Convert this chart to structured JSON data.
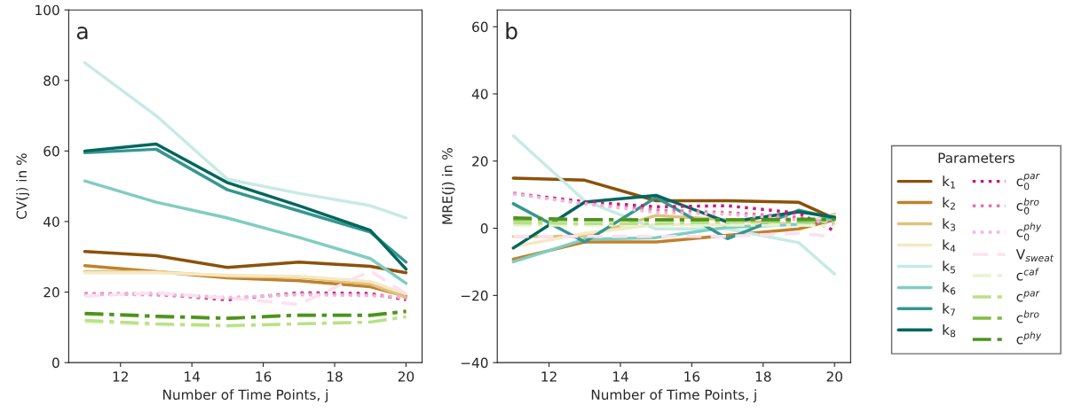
{
  "chart_data": [
    {
      "type": "line",
      "ylabel": "CV(j) in %",
      "xlabel": "Number of Time Points, j",
      "annotations": [
        "a"
      ],
      "x": [
        11,
        13,
        15,
        17,
        19,
        20
      ],
      "xlim": [
        10.55,
        20.45
      ],
      "xticks": [
        12,
        14,
        16,
        18,
        20
      ],
      "ylim": [
        0,
        100
      ],
      "yticks": [
        0,
        20,
        40,
        60,
        80,
        100
      ],
      "grid": false,
      "legend": false,
      "series": [
        {
          "color": "#8c510a",
          "line_style": "solid",
          "values": [
            31.5,
            30.3,
            27,
            28.5,
            27.3,
            25.5
          ]
        },
        {
          "color": "#bf812d",
          "line_style": "solid",
          "values": [
            27.5,
            25.8,
            24,
            23.2,
            21.5,
            18.8
          ]
        },
        {
          "color": "#dfc27d",
          "line_style": "solid",
          "values": [
            25.8,
            25.8,
            24.5,
            24.2,
            22.3,
            18.5
          ]
        },
        {
          "color": "#f6e8c3",
          "line_style": "solid",
          "values": [
            25.5,
            25.5,
            24.8,
            24.5,
            23,
            19.5
          ]
        },
        {
          "color": "#c7eae5",
          "line_style": "solid",
          "values": [
            85,
            70,
            52,
            48,
            44.5,
            41
          ]
        },
        {
          "color": "#80cdc1",
          "line_style": "solid",
          "values": [
            51.5,
            45.5,
            41,
            35.5,
            29.5,
            22.5
          ]
        },
        {
          "color": "#35978f",
          "line_style": "solid",
          "values": [
            59.5,
            60.5,
            49,
            43,
            37,
            28.5
          ]
        },
        {
          "color": "#01665e",
          "line_style": "solid",
          "values": [
            60,
            62,
            51,
            44.5,
            37.5,
            26.5
          ]
        },
        {
          "color": "#c51b7d",
          "line_style": "dotted",
          "values": [
            19.5,
            19.5,
            17.8,
            19.8,
            19.6,
            17.8
          ]
        },
        {
          "color": "#de77ae",
          "line_style": "dotted",
          "values": [
            19.5,
            19.2,
            18.2,
            19.5,
            19.2,
            18.2
          ]
        },
        {
          "color": "#f1b6da",
          "line_style": "dotted",
          "values": [
            19.2,
            19.5,
            18.5,
            19.2,
            19,
            18.5
          ]
        },
        {
          "color": "#fde0ef",
          "line_style": "dashed",
          "values": [
            18.8,
            19.8,
            18.3,
            16.5,
            26,
            19.5
          ]
        },
        {
          "color": "#e6f5d0",
          "line_style": "dashdot",
          "values": [
            11.5,
            10.7,
            10.3,
            11,
            11.5,
            13
          ]
        },
        {
          "color": "#b8e186",
          "line_style": "dashdot",
          "values": [
            12,
            11,
            10.5,
            11,
            11.5,
            13
          ]
        },
        {
          "color": "#7fbc41",
          "line_style": "dashdot",
          "values": [
            13.8,
            13,
            12.5,
            13.4,
            13.3,
            14.4
          ]
        },
        {
          "color": "#4d9221",
          "line_style": "dashdot",
          "values": [
            14,
            13.2,
            12.6,
            13.5,
            13.5,
            14.6
          ]
        }
      ]
    },
    {
      "type": "line",
      "ylabel": "MRE(j) in %",
      "xlabel": "Number of Time Points, j",
      "annotations": [
        "b"
      ],
      "x": [
        11,
        13,
        15,
        17,
        19,
        20
      ],
      "xlim": [
        10.55,
        20.45
      ],
      "xticks": [
        12,
        14,
        16,
        18,
        20
      ],
      "ylim": [
        -40,
        65
      ],
      "yticks": [
        -40,
        -20,
        0,
        20,
        40,
        60
      ],
      "grid": false,
      "legend": "right",
      "legend_title": "Parameters",
      "series": [
        {
          "name": "k$_{1}$",
          "color": "#8c510a",
          "line_style": "solid",
          "values": [
            14.9,
            14.3,
            8.2,
            8.2,
            7.7,
            2.9
          ]
        },
        {
          "name": "k$_{2}$",
          "color": "#bf812d",
          "line_style": "solid",
          "values": [
            -9.2,
            -4.1,
            -4.1,
            -2.1,
            -0.2,
            2.5
          ]
        },
        {
          "name": "k$_{3}$",
          "color": "#dfc27d",
          "line_style": "solid",
          "values": [
            -2.4,
            -2.4,
            3.8,
            2.5,
            1.1,
            4.2
          ]
        },
        {
          "name": "k$_{4}$",
          "color": "#f6e8c3",
          "line_style": "solid",
          "values": [
            -5.5,
            -1.5,
            1.1,
            1.1,
            1.1,
            3.8
          ]
        },
        {
          "name": "k$_{5}$",
          "color": "#c7eae5",
          "line_style": "solid",
          "values": [
            27.5,
            8.2,
            -0.2,
            -0.2,
            -4.3,
            -13.6
          ]
        },
        {
          "name": "k$_{6}$",
          "color": "#80cdc1",
          "line_style": "solid",
          "values": [
            -10,
            -3.3,
            -2.8,
            0.3,
            1.1,
            2.9
          ]
        },
        {
          "name": "k$_{7}$",
          "color": "#35978f",
          "line_style": "solid",
          "values": [
            7.3,
            -4.1,
            9.2,
            -3.1,
            5.4,
            2.9
          ]
        },
        {
          "name": "k$_{8}$",
          "color": "#01665e",
          "line_style": "solid",
          "values": [
            -5.9,
            7.8,
            9.8,
            1.8,
            4.9,
            3.3
          ]
        },
        {
          "name": "c$^{par}$$_{0}$",
          "color": "#c51b7d",
          "line_style": "dotted",
          "values": [
            10.4,
            7.9,
            6.4,
            6.7,
            4.5,
            -0.8
          ]
        },
        {
          "name": "c$^{bro}$$_{0}$",
          "color": "#de77ae",
          "line_style": "dotted",
          "values": [
            10.4,
            7.3,
            5.4,
            4.7,
            3.3,
            1.1
          ]
        },
        {
          "name": "c$^{phy}$$_{0}$",
          "color": "#f1b6da",
          "line_style": "dotted",
          "values": [
            10.2,
            7.3,
            4.7,
            4.2,
            2.5,
            1.6
          ]
        },
        {
          "name": "V$_{sweat}$",
          "color": "#fde0ef",
          "line_style": "dashed",
          "values": [
            -2.4,
            -2.4,
            -2.4,
            -2.4,
            -1.5,
            -2.6
          ]
        },
        {
          "name": "c$^{caf}$",
          "color": "#e6f5d0",
          "line_style": "dashdot",
          "values": [
            0.9,
            0.9,
            0.9,
            0.9,
            0.9,
            0.7
          ]
        },
        {
          "name": "c$^{par}$",
          "color": "#b8e186",
          "line_style": "dashdot",
          "values": [
            1.6,
            1.4,
            1.4,
            1.8,
            2,
            1.8
          ]
        },
        {
          "name": "c$^{bro}$",
          "color": "#7fbc41",
          "line_style": "dashdot",
          "values": [
            2.6,
            2.5,
            2.5,
            2.6,
            2.2,
            2.5
          ]
        },
        {
          "name": "c$^{phy}$",
          "color": "#4d9221",
          "line_style": "dashdot",
          "values": [
            3.1,
            2.6,
            2.5,
            2.5,
            2.7,
            2.7
          ]
        }
      ]
    }
  ]
}
